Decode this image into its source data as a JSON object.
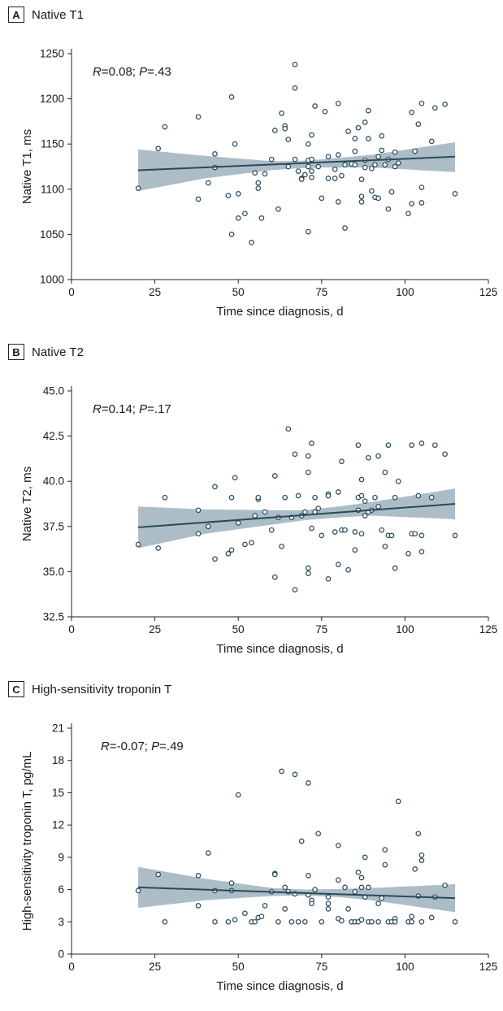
{
  "chart_data": [
    {
      "type": "scatter",
      "panel_label": "A",
      "title": "Native T1",
      "annotation": {
        "r_label": "R",
        "r_value": "=0.08; ",
        "p_label": "P",
        "p_value": "=.43"
      },
      "xlabel": "Time since diagnosis, d",
      "ylabel": "Native T1, ms",
      "xlim": [
        0,
        125
      ],
      "ylim": [
        1000,
        1250
      ],
      "xticks": [
        0,
        25,
        50,
        75,
        100,
        125
      ],
      "yticks": [
        1000,
        1050,
        1100,
        1150,
        1200,
        1250
      ],
      "ytick_decimals": 0,
      "fit": {
        "x": [
          20,
          115
        ],
        "y": [
          1121,
          1136
        ]
      },
      "ci": {
        "x": [
          20,
          40,
          60,
          67,
          75,
          90,
          115
        ],
        "lower": [
          1098,
          1112,
          1121,
          1123,
          1124,
          1124,
          1119
        ],
        "upper": [
          1144,
          1137,
          1131,
          1131,
          1133,
          1138,
          1152
        ]
      },
      "x": [
        20,
        26,
        28,
        38,
        38,
        41,
        43,
        43,
        47,
        48,
        48,
        49,
        50,
        50,
        52,
        54,
        55,
        56,
        56,
        57,
        58,
        60,
        61,
        62,
        63,
        64,
        64,
        65,
        65,
        67,
        67,
        67,
        68,
        69,
        69,
        70,
        71,
        71,
        71,
        71,
        72,
        72,
        72,
        72,
        73,
        74,
        75,
        76,
        77,
        77,
        79,
        79,
        80,
        80,
        80,
        81,
        82,
        82,
        83,
        84,
        85,
        85,
        85,
        86,
        87,
        87,
        87,
        88,
        88,
        88,
        89,
        89,
        90,
        90,
        91,
        91,
        92,
        92,
        93,
        93,
        94,
        95,
        95,
        96,
        97,
        97,
        98,
        101,
        102,
        102,
        103,
        104,
        105,
        105,
        105,
        108,
        109,
        112,
        115
      ],
      "y": [
        1101,
        1145,
        1169,
        1180,
        1089,
        1107,
        1139,
        1124,
        1093,
        1050,
        1202,
        1150,
        1068,
        1095,
        1073,
        1041,
        1118,
        1107,
        1101,
        1068,
        1117,
        1133,
        1165,
        1078,
        1184,
        1170,
        1167,
        1125,
        1155,
        1238,
        1212,
        1133,
        1120,
        1112,
        1111,
        1116,
        1132,
        1125,
        1150,
        1053,
        1160,
        1133,
        1113,
        1120,
        1192,
        1125,
        1090,
        1186,
        1136,
        1112,
        1122,
        1112,
        1195,
        1138,
        1086,
        1115,
        1127,
        1057,
        1164,
        1128,
        1142,
        1156,
        1127,
        1168,
        1111,
        1092,
        1086,
        1174,
        1132,
        1124,
        1187,
        1156,
        1123,
        1098,
        1127,
        1091,
        1136,
        1090,
        1159,
        1143,
        1127,
        1133,
        1078,
        1097,
        1125,
        1141,
        1129,
        1073,
        1084,
        1185,
        1142,
        1172,
        1195,
        1085,
        1102,
        1153,
        1190,
        1194,
        1095
      ]
    },
    {
      "type": "scatter",
      "panel_label": "B",
      "title": "Native T2",
      "annotation": {
        "r_label": "R",
        "r_value": "=0.14; ",
        "p_label": "P",
        "p_value": "=.17"
      },
      "xlabel": "Time since diagnosis, d",
      "ylabel": "Native T2, ms",
      "xlim": [
        0,
        125
      ],
      "ylim": [
        32.5,
        45.0
      ],
      "xticks": [
        0,
        25,
        50,
        75,
        100,
        125
      ],
      "yticks": [
        32.5,
        35.0,
        37.5,
        40.0,
        42.5,
        45.0
      ],
      "ytick_decimals": 1,
      "fit": {
        "x": [
          20,
          115
        ],
        "y": [
          37.45,
          38.75
        ]
      },
      "ci": {
        "x": [
          20,
          40,
          60,
          70,
          80,
          90,
          115
        ],
        "lower": [
          36.3,
          37.1,
          37.6,
          37.85,
          38.0,
          38.1,
          37.9
        ],
        "upper": [
          38.6,
          38.45,
          38.4,
          38.4,
          38.6,
          38.85,
          39.6
        ]
      },
      "x": [
        20,
        26,
        28,
        38,
        38,
        41,
        43,
        43,
        47,
        48,
        48,
        49,
        50,
        52,
        54,
        55,
        56,
        56,
        58,
        60,
        61,
        61,
        62,
        63,
        64,
        65,
        66,
        67,
        67,
        68,
        69,
        70,
        71,
        71,
        71,
        71,
        72,
        72,
        73,
        73,
        74,
        75,
        77,
        77,
        77,
        79,
        80,
        80,
        81,
        81,
        82,
        83,
        85,
        85,
        86,
        86,
        86,
        87,
        87,
        87,
        88,
        88,
        89,
        89,
        90,
        91,
        92,
        92,
        93,
        94,
        94,
        95,
        95,
        96,
        97,
        97,
        98,
        101,
        102,
        102,
        103,
        104,
        105,
        105,
        105,
        108,
        109,
        112,
        115
      ],
      "y": [
        36.5,
        36.3,
        39.1,
        38.4,
        37.1,
        37.5,
        35.7,
        39.7,
        36.0,
        36.2,
        39.1,
        40.2,
        37.7,
        36.5,
        36.6,
        38.1,
        39.0,
        39.1,
        38.3,
        37.3,
        40.3,
        34.7,
        38.0,
        36.4,
        39.1,
        42.9,
        38.0,
        41.5,
        34.0,
        39.2,
        38.1,
        38.3,
        40.5,
        41.4,
        35.2,
        34.9,
        42.1,
        37.4,
        38.3,
        39.1,
        38.5,
        37.0,
        39.3,
        39.2,
        34.6,
        37.2,
        39.4,
        35.4,
        41.1,
        37.3,
        37.3,
        35.1,
        36.2,
        37.2,
        42.0,
        39.1,
        38.4,
        40.1,
        39.2,
        37.1,
        38.1,
        38.9,
        41.3,
        38.3,
        38.4,
        39.1,
        41.4,
        38.6,
        37.3,
        40.5,
        36.4,
        42.0,
        37.0,
        37.0,
        35.2,
        39.1,
        40.0,
        36.0,
        37.1,
        42.0,
        37.1,
        39.2,
        42.1,
        37.0,
        36.1,
        39.1,
        42.0,
        41.5,
        37.0
      ]
    },
    {
      "type": "scatter",
      "panel_label": "C",
      "title": "High-sensitivity troponin T",
      "annotation": {
        "r_label": "R",
        "r_value": "=-0.07; ",
        "p_label": "P",
        "p_value": "=.49"
      },
      "xlabel": "Time since diagnosis, d",
      "ylabel": "High-sensitivity troponin T, pg/mL",
      "xlim": [
        0,
        125
      ],
      "ylim": [
        0,
        21
      ],
      "xticks": [
        0,
        25,
        50,
        75,
        100,
        125
      ],
      "yticks": [
        0,
        3,
        6,
        9,
        12,
        15,
        18,
        21
      ],
      "ytick_decimals": 0,
      "fit": {
        "x": [
          20,
          115
        ],
        "y": [
          6.2,
          5.2
        ]
      },
      "ci": {
        "x": [
          20,
          40,
          60,
          70,
          80,
          90,
          115
        ],
        "lower": [
          4.3,
          5.0,
          5.4,
          5.45,
          5.3,
          5.0,
          3.9
        ],
        "upper": [
          8.1,
          7.0,
          6.15,
          6.0,
          6.05,
          6.15,
          6.5
        ]
      },
      "x": [
        20,
        26,
        28,
        38,
        38,
        41,
        43,
        43,
        47,
        48,
        48,
        49,
        50,
        52,
        54,
        55,
        56,
        57,
        58,
        60,
        61,
        61,
        62,
        63,
        64,
        64,
        65,
        66,
        67,
        67,
        68,
        69,
        70,
        71,
        71,
        71,
        72,
        72,
        73,
        74,
        75,
        77,
        77,
        77,
        80,
        80,
        80,
        81,
        82,
        83,
        84,
        85,
        85,
        86,
        86,
        87,
        87,
        87,
        88,
        88,
        89,
        89,
        90,
        92,
        92,
        93,
        94,
        94,
        95,
        96,
        97,
        97,
        98,
        101,
        102,
        102,
        103,
        104,
        104,
        105,
        105,
        105,
        108,
        109,
        112,
        115
      ],
      "y": [
        5.9,
        7.4,
        3.0,
        7.3,
        4.5,
        9.4,
        5.9,
        3.0,
        3.0,
        6.6,
        5.9,
        3.2,
        14.8,
        3.8,
        3.0,
        3.0,
        3.4,
        3.5,
        4.5,
        5.8,
        7.5,
        7.4,
        3.0,
        17.0,
        6.2,
        4.2,
        5.8,
        3.0,
        16.7,
        5.6,
        3.0,
        10.5,
        3.0,
        15.9,
        7.3,
        5.5,
        5.0,
        4.7,
        6.0,
        11.2,
        3.0,
        5.3,
        4.7,
        4.2,
        10.1,
        6.9,
        3.3,
        3.1,
        6.2,
        4.2,
        3.0,
        5.8,
        3.0,
        7.6,
        3.0,
        7.1,
        6.2,
        3.2,
        5.3,
        9.0,
        6.2,
        3.0,
        3.0,
        4.7,
        3.0,
        5.2,
        9.7,
        8.3,
        3.0,
        3.0,
        3.3,
        3.0,
        14.2,
        3.0,
        3.5,
        3.0,
        7.9,
        11.2,
        5.4,
        9.2,
        8.7,
        3.0,
        3.4,
        5.3,
        6.4,
        3.0
      ]
    }
  ]
}
